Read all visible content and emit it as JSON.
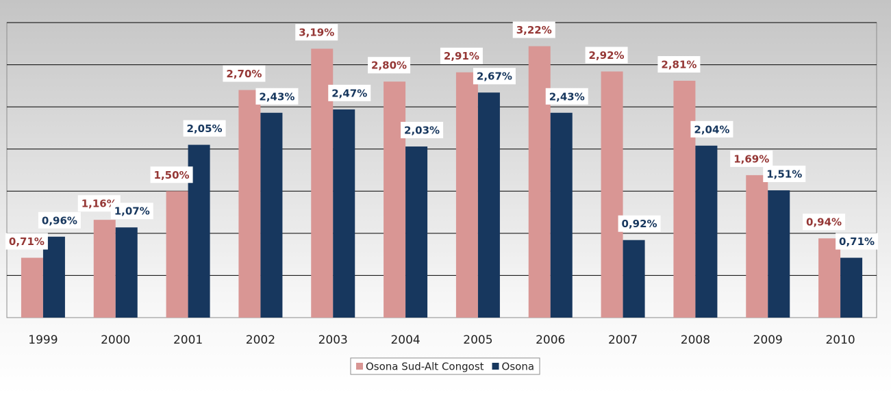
{
  "chart_data": {
    "type": "bar",
    "categories": [
      "1999",
      "2000",
      "2001",
      "2002",
      "2003",
      "2004",
      "2005",
      "2006",
      "2007",
      "2008",
      "2009",
      "2010"
    ],
    "series": [
      {
        "name": "Osona Sud-Alt Congost",
        "color": "#d99694",
        "values": [
          0.71,
          1.16,
          1.5,
          2.7,
          3.19,
          2.8,
          2.91,
          3.22,
          2.92,
          2.81,
          1.69,
          0.94
        ],
        "value_labels": [
          "0,71%",
          "1,16%",
          "1,50%",
          "2,70%",
          "3,19%",
          "2,80%",
          "2,91%",
          "3,22%",
          "2,92%",
          "2,81%",
          "1,69%",
          "0,94%"
        ]
      },
      {
        "name": "Osona",
        "color": "#17375e",
        "values": [
          0.96,
          1.07,
          2.05,
          2.43,
          2.47,
          2.03,
          2.67,
          2.43,
          0.92,
          2.04,
          1.51,
          0.71
        ],
        "value_labels": [
          "0,96%",
          "1,07%",
          "2,05%",
          "2,43%",
          "2,47%",
          "2,03%",
          "2,67%",
          "2,43%",
          "0,92%",
          "2,04%",
          "1,51%",
          "0,71%"
        ]
      }
    ],
    "ylim": [
      0,
      3.5
    ],
    "yticks": [
      0,
      0.5,
      1,
      1.5,
      2,
      2.5,
      3,
      3.5
    ],
    "grid": true,
    "legend": "bottom"
  }
}
